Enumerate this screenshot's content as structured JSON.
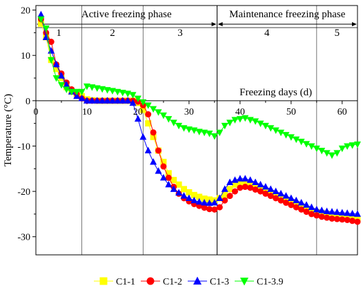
{
  "chart_data": {
    "type": "scatter",
    "xlabel": "Freezing days (d)",
    "ylabel": "Temperature (°C)",
    "xlim": [
      0,
      63
    ],
    "ylim": [
      -34,
      21
    ],
    "x_ticks": [
      0,
      10,
      20,
      30,
      40,
      50,
      60
    ],
    "y_ticks": [
      20,
      10,
      0,
      -10,
      -20,
      -30
    ],
    "grid": false,
    "legend_position": "bottom",
    "phases": [
      {
        "label": "Active freezing phase",
        "start": 0,
        "end": 35.5
      },
      {
        "label": "Maintenance freezing phase",
        "start": 35.5,
        "end": 63
      }
    ],
    "stages": [
      {
        "label": "1",
        "start": 0,
        "end": 9
      },
      {
        "label": "2",
        "start": 9,
        "end": 21
      },
      {
        "label": "3",
        "start": 21,
        "end": 35.5
      },
      {
        "label": "4",
        "start": 35.5,
        "end": 55
      },
      {
        "label": "5",
        "start": 55,
        "end": 63
      }
    ],
    "series": [
      {
        "name": "C1-1",
        "color": "#ffff00",
        "marker": "square",
        "x": [
          1,
          2,
          3,
          4,
          5,
          6,
          7,
          8,
          9,
          10,
          11,
          12,
          13,
          14,
          15,
          16,
          17,
          18,
          19,
          20,
          21,
          22,
          23,
          24,
          25,
          26,
          27,
          28,
          29,
          30,
          31,
          32,
          33,
          34,
          35,
          36,
          37,
          38,
          39,
          40,
          41,
          42,
          43,
          44,
          45,
          46,
          47,
          48,
          49,
          50,
          51,
          52,
          53,
          54,
          55,
          56,
          57,
          58,
          59,
          60,
          61,
          62,
          63
        ],
        "y": [
          17,
          14,
          9,
          7,
          5,
          3,
          2,
          1.5,
          1,
          0.3,
          0.1,
          0,
          0,
          0,
          0,
          0,
          0,
          0,
          0,
          -0.5,
          -2,
          -5,
          -8,
          -11,
          -13.5,
          -16,
          -17.5,
          -18.5,
          -19.5,
          -20.2,
          -20.8,
          -21.2,
          -21.6,
          -21.8,
          -22,
          -21.5,
          -20.8,
          -19.5,
          -18.5,
          -18,
          -18.2,
          -18.6,
          -19,
          -19.5,
          -20,
          -20.5,
          -21,
          -21.5,
          -22,
          -22.5,
          -23,
          -23.5,
          -24,
          -24.3,
          -24.6,
          -24.8,
          -25,
          -25.2,
          -25.4,
          -25.6,
          -25.8,
          -26,
          -26.2
        ]
      },
      {
        "name": "C1-2",
        "color": "#ff0000",
        "marker": "circle",
        "x": [
          1,
          2,
          3,
          4,
          5,
          6,
          7,
          8,
          9,
          10,
          11,
          12,
          13,
          14,
          15,
          16,
          17,
          18,
          19,
          20,
          21,
          22,
          23,
          24,
          25,
          26,
          27,
          28,
          29,
          30,
          31,
          32,
          33,
          34,
          35,
          36,
          37,
          38,
          39,
          40,
          41,
          42,
          43,
          44,
          45,
          46,
          47,
          48,
          49,
          50,
          51,
          52,
          53,
          54,
          55,
          56,
          57,
          58,
          59,
          60,
          61,
          62,
          63
        ],
        "y": [
          18,
          15,
          13,
          8,
          6,
          4,
          2.5,
          1.5,
          0.5,
          0,
          0,
          0,
          0,
          0,
          0,
          0,
          0,
          0,
          0,
          -0.2,
          -1,
          -3,
          -7,
          -11,
          -14.5,
          -17,
          -19,
          -20.5,
          -21.5,
          -22.2,
          -22.8,
          -23.2,
          -23.6,
          -23.9,
          -24,
          -23.5,
          -22,
          -21,
          -20,
          -19.2,
          -19,
          -19.2,
          -19.6,
          -20,
          -20.5,
          -21,
          -21.5,
          -22,
          -22.5,
          -23,
          -23.5,
          -24,
          -24.5,
          -25,
          -25.3,
          -25.6,
          -25.8,
          -26,
          -26.1,
          -26.2,
          -26.3,
          -26.5,
          -26.7
        ]
      },
      {
        "name": "C1-3",
        "color": "#0000ff",
        "marker": "triangle-up",
        "x": [
          1,
          2,
          3,
          4,
          5,
          6,
          7,
          8,
          9,
          10,
          11,
          12,
          13,
          14,
          15,
          16,
          17,
          18,
          19,
          20,
          21,
          22,
          23,
          24,
          25,
          26,
          27,
          28,
          29,
          30,
          31,
          32,
          33,
          34,
          35,
          36,
          37,
          38,
          39,
          40,
          41,
          42,
          43,
          44,
          45,
          46,
          47,
          48,
          49,
          50,
          51,
          52,
          53,
          54,
          55,
          56,
          57,
          58,
          59,
          60,
          61,
          62,
          63
        ],
        "y": [
          19,
          14,
          11,
          8,
          5.5,
          3.5,
          2,
          1,
          0.5,
          0,
          0,
          0,
          0,
          0,
          0,
          0,
          0,
          0,
          -0.5,
          -4,
          -8,
          -11,
          -13.5,
          -15.5,
          -17,
          -18.5,
          -19.5,
          -20.3,
          -21,
          -21.5,
          -22,
          -22.3,
          -22.5,
          -22.6,
          -22.5,
          -21.5,
          -19.5,
          -18,
          -17.5,
          -17.2,
          -17.2,
          -17.5,
          -18,
          -18.5,
          -19,
          -19.5,
          -20,
          -20.5,
          -21,
          -21.5,
          -22,
          -22.5,
          -23,
          -23.5,
          -24,
          -24.2,
          -24.4,
          -24.5,
          -24.6,
          -24.7,
          -24.8,
          -24.9,
          -25
        ]
      },
      {
        "name": "C1-3.9",
        "color": "#00ff00",
        "marker": "triangle-down",
        "x": [
          1,
          2,
          3,
          4,
          5,
          6,
          7,
          8,
          9,
          10,
          11,
          12,
          13,
          14,
          15,
          16,
          17,
          18,
          19,
          20,
          21,
          22,
          23,
          24,
          25,
          26,
          27,
          28,
          29,
          30,
          31,
          32,
          33,
          34,
          35,
          36,
          37,
          38,
          39,
          40,
          41,
          42,
          43,
          44,
          45,
          46,
          47,
          48,
          49,
          50,
          51,
          52,
          53,
          54,
          55,
          56,
          57,
          58,
          59,
          60,
          61,
          62,
          63
        ],
        "y": [
          18,
          16,
          9,
          5,
          3.5,
          2.5,
          2,
          2,
          2,
          3.2,
          3,
          2.8,
          2.6,
          2.4,
          2.2,
          2,
          1.8,
          1.6,
          1.3,
          0.5,
          -0.3,
          -1,
          -1.8,
          -2.5,
          -3.2,
          -4,
          -4.8,
          -5.5,
          -6,
          -6.3,
          -6.5,
          -6.8,
          -7,
          -7.2,
          -7.8,
          -7,
          -5.5,
          -4.8,
          -4.2,
          -4,
          -3.8,
          -4.2,
          -4.5,
          -5,
          -5.5,
          -6,
          -6.5,
          -7,
          -7.5,
          -8,
          -8.5,
          -9,
          -9.5,
          -10,
          -10.5,
          -11,
          -11.5,
          -12,
          -11.5,
          -10.5,
          -10,
          -9.8,
          -9.6
        ]
      }
    ]
  }
}
